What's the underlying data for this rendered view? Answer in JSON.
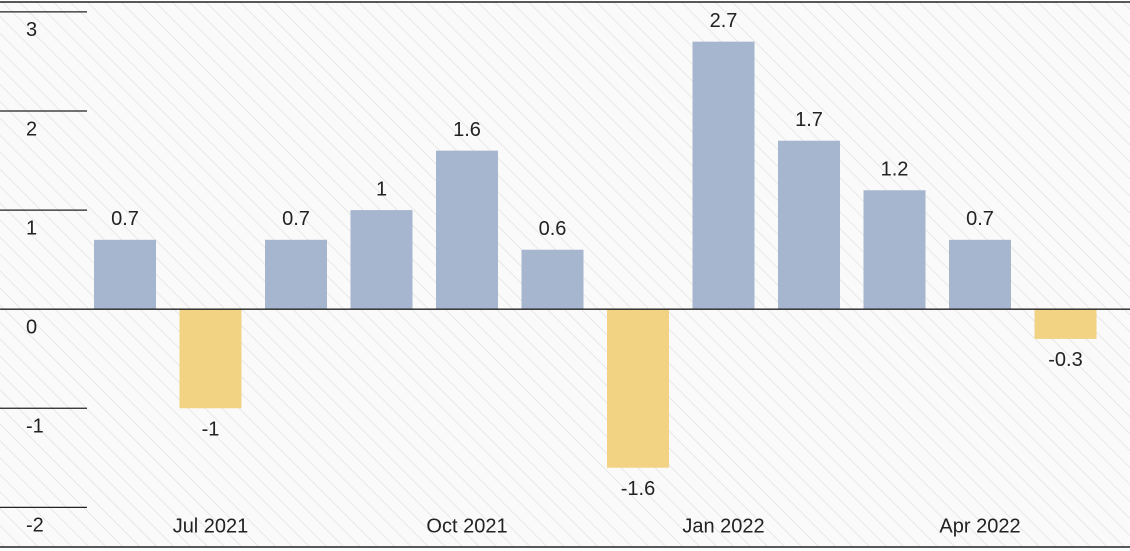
{
  "chart_data": {
    "type": "bar",
    "categories": [
      null,
      "Jul 2021",
      null,
      null,
      "Oct 2021",
      null,
      null,
      "Jan 2022",
      null,
      null,
      "Apr 2022",
      null
    ],
    "values": [
      0.7,
      -1,
      0.7,
      1,
      1.6,
      0.6,
      -1.6,
      2.7,
      1.7,
      1.2,
      0.7,
      -0.3
    ],
    "positive_color": "#a6b6cf",
    "negative_color": "#f2d383",
    "ylim": [
      -2.4,
      3.1
    ],
    "yticks": [
      -2,
      -1,
      0,
      1,
      2,
      3
    ],
    "grid": true
  }
}
